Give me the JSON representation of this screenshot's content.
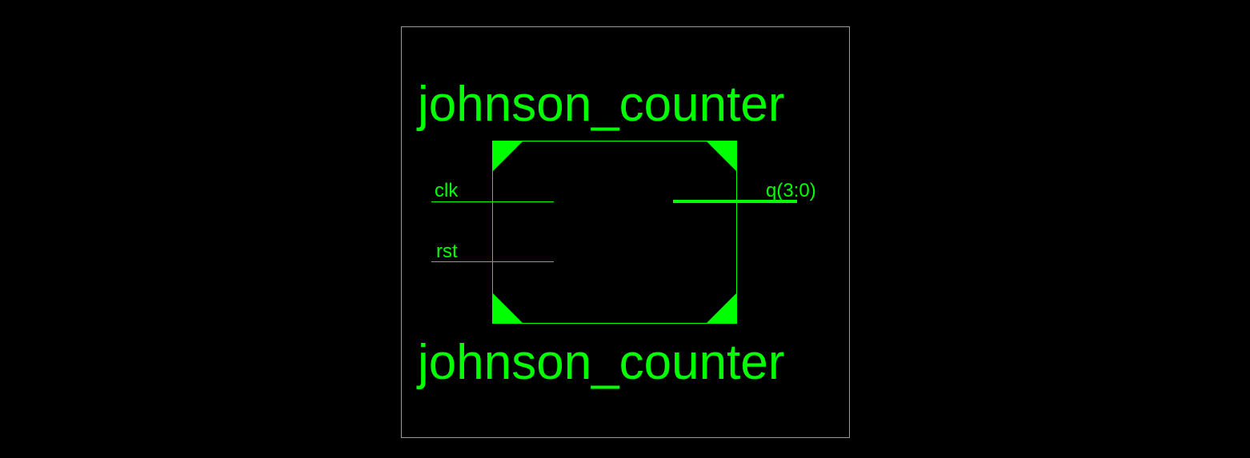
{
  "symbol": {
    "name_top": "johnson_counter",
    "name_bottom": "johnson_counter",
    "pins": {
      "clk": "clk",
      "rst": "rst",
      "q": "q(3:0)"
    }
  },
  "colors": {
    "background": "#000000",
    "symbol": "#00ff00",
    "frame": "#9a9a9a"
  }
}
